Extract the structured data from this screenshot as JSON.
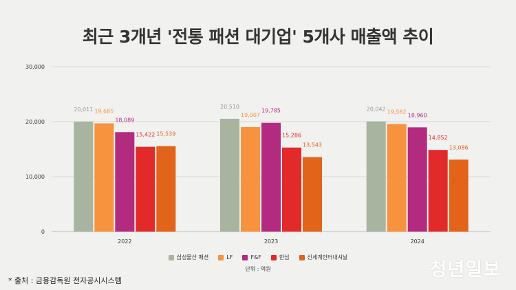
{
  "title": "최근 3개년 '전통 패션 대기업' 5개사 매출액 추이",
  "unit_note": "단위 : 억원",
  "source": "* 출처 : 금융감독원 전자공시시스템",
  "logo_text": "청년일보",
  "chart_data": {
    "type": "bar",
    "categories": [
      "2022",
      "2023",
      "2024"
    ],
    "ylim": [
      0,
      30000
    ],
    "yticks": [
      0,
      10000,
      20000,
      30000
    ],
    "ytick_labels": [
      "0",
      "10,000",
      "20,000",
      "30,000"
    ],
    "grid": true,
    "legend_position": "bottom",
    "series": [
      {
        "name": "삼성물산 패션",
        "color": "#a8b4a0",
        "label_color": "#9a9a9a",
        "values": [
          20011,
          20510,
          20042
        ],
        "labels": [
          "20,011",
          "20,510",
          "20,042"
        ]
      },
      {
        "name": "LF",
        "color": "#f7923f",
        "label_color": "#f7923f",
        "values": [
          19685,
          19007,
          19562
        ],
        "labels": [
          "19,685",
          "19,007",
          "19,562"
        ]
      },
      {
        "name": "F&F",
        "color": "#b32b7e",
        "label_color": "#b32b7e",
        "values": [
          18089,
          19785,
          18960
        ],
        "labels": [
          "18,089",
          "19,785",
          "18,960"
        ]
      },
      {
        "name": "한섬",
        "color": "#e22a2a",
        "label_color": "#e22a2a",
        "values": [
          15422,
          15286,
          14852
        ],
        "labels": [
          "15,422",
          "15,286",
          "14,852"
        ]
      },
      {
        "name": "신세계인터내셔날",
        "color": "#e2641b",
        "label_color": "#e2641b",
        "values": [
          15539,
          13543,
          13086
        ],
        "labels": [
          "15,539",
          "13,543",
          "13,086"
        ]
      }
    ]
  }
}
